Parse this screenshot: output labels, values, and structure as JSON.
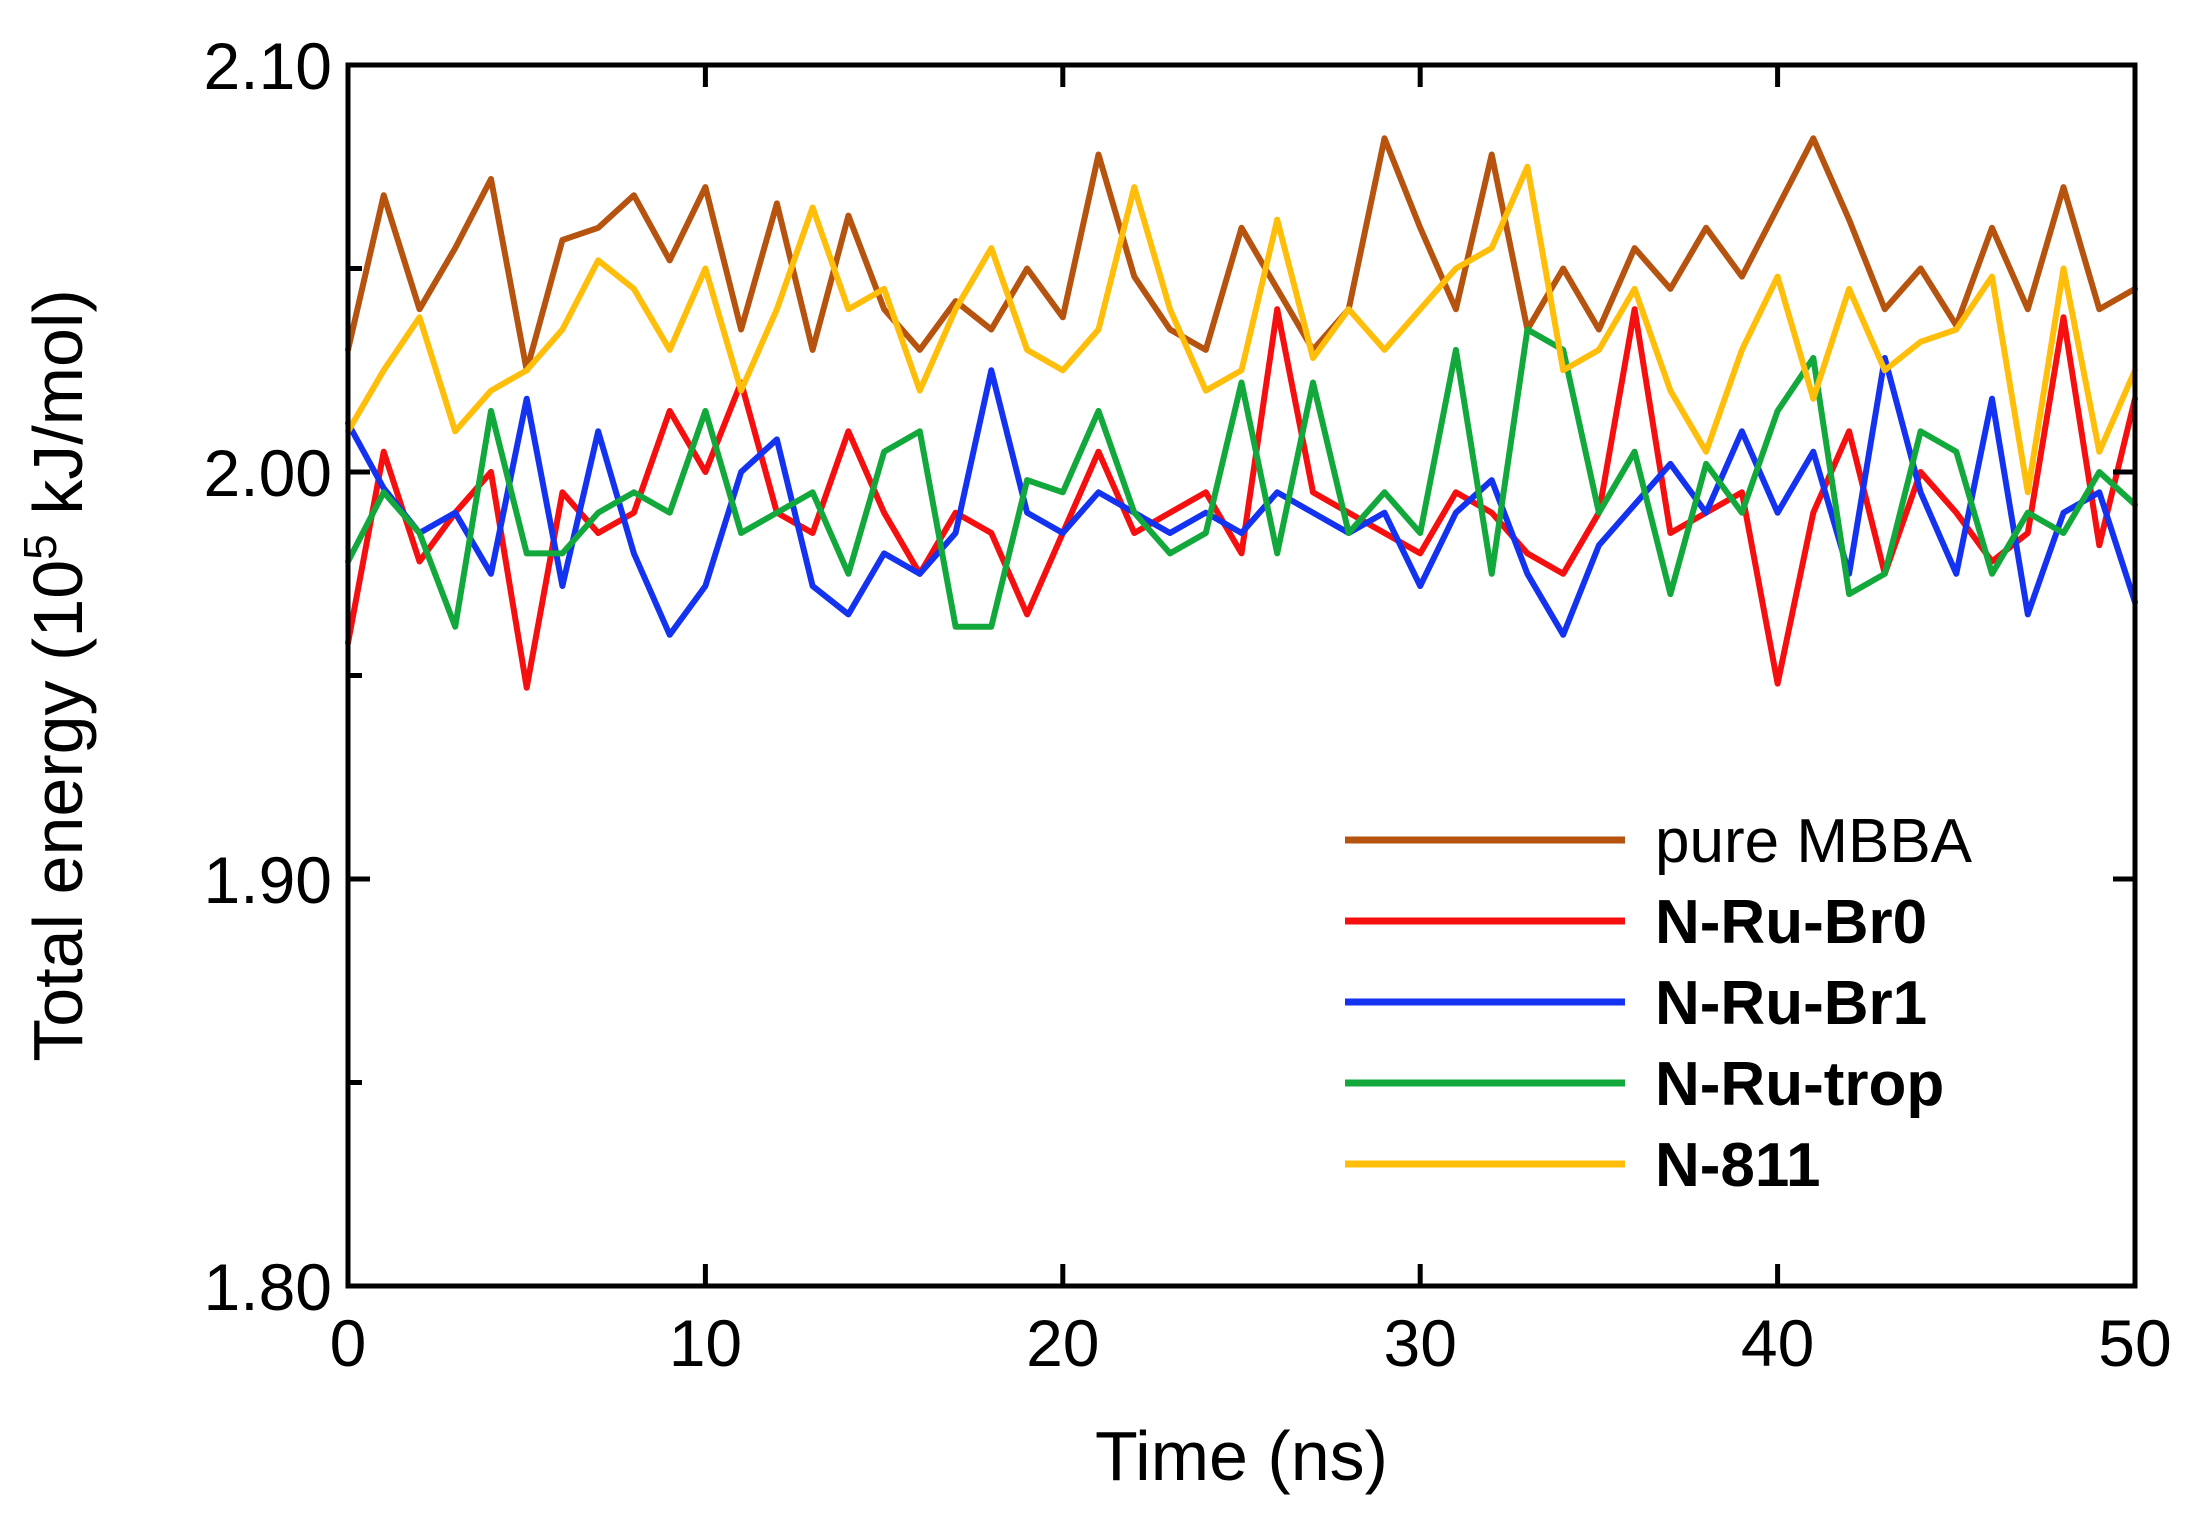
{
  "chart_data": {
    "type": "line",
    "title": "",
    "xlabel": "Time (ns)",
    "ylabel": "Total energy (10⁵ kJ/mol)",
    "xlim": [
      0,
      50
    ],
    "ylim": [
      1.8,
      2.1
    ],
    "xticks": [
      0,
      10,
      20,
      30,
      40,
      50
    ],
    "xtick_labels": [
      "0",
      "10",
      "20",
      "30",
      "40",
      "50"
    ],
    "yticks": [
      1.8,
      1.9,
      2.0,
      2.1
    ],
    "ytick_labels": [
      "1.80",
      "1.90",
      "2.00",
      "2.10"
    ],
    "yminor_ticks": [
      1.85,
      1.95,
      2.05
    ],
    "grid": false,
    "legend_position": "lower-right",
    "series": [
      {
        "name": "pure MBBA",
        "bold": false,
        "color": "#B5530F",
        "x": [
          0,
          1,
          2,
          3,
          4,
          5,
          6,
          7,
          8,
          9,
          10,
          11,
          12,
          13,
          14,
          15,
          16,
          17,
          18,
          19,
          20,
          21,
          22,
          23,
          24,
          25,
          26,
          27,
          28,
          29,
          30,
          31,
          32,
          33,
          34,
          35,
          36,
          37,
          38,
          39,
          40,
          41,
          42,
          43,
          44,
          45,
          46,
          47,
          48,
          49,
          50
        ],
        "y": [
          2.03,
          2.068,
          2.04,
          2.055,
          2.072,
          2.025,
          2.057,
          2.06,
          2.068,
          2.052,
          2.07,
          2.035,
          2.066,
          2.03,
          2.063,
          2.04,
          2.03,
          2.042,
          2.035,
          2.05,
          2.038,
          2.078,
          2.048,
          2.035,
          2.03,
          2.06,
          2.045,
          2.03,
          2.04,
          2.082,
          2.06,
          2.04,
          2.078,
          2.035,
          2.05,
          2.035,
          2.055,
          2.045,
          2.06,
          2.048,
          2.065,
          2.082,
          2.062,
          2.04,
          2.05,
          2.036,
          2.06,
          2.04,
          2.07,
          2.04,
          2.045
        ]
      },
      {
        "name": "N-Ru-Br0",
        "bold": true,
        "color": "#F50F0F",
        "x": [
          0,
          1,
          2,
          3,
          4,
          5,
          6,
          7,
          8,
          9,
          10,
          11,
          12,
          13,
          14,
          15,
          16,
          17,
          18,
          19,
          20,
          21,
          22,
          23,
          24,
          25,
          26,
          27,
          28,
          29,
          30,
          31,
          32,
          33,
          34,
          35,
          36,
          37,
          38,
          39,
          40,
          41,
          42,
          43,
          44,
          45,
          46,
          47,
          48,
          49,
          50
        ],
        "y": [
          1.958,
          2.005,
          1.978,
          1.99,
          2.0,
          1.947,
          1.995,
          1.985,
          1.99,
          2.015,
          2.0,
          2.022,
          1.99,
          1.985,
          2.01,
          1.99,
          1.975,
          1.99,
          1.985,
          1.965,
          1.985,
          2.005,
          1.985,
          1.99,
          1.995,
          1.98,
          2.04,
          1.995,
          1.99,
          1.985,
          1.98,
          1.995,
          1.99,
          1.98,
          1.975,
          1.99,
          2.04,
          1.985,
          1.99,
          1.995,
          1.948,
          1.99,
          2.01,
          1.975,
          2.0,
          1.99,
          1.978,
          1.985,
          2.038,
          1.982,
          2.018
        ]
      },
      {
        "name": "N-Ru-Br1",
        "bold": true,
        "color": "#1433F0",
        "x": [
          0,
          1,
          2,
          3,
          4,
          5,
          6,
          7,
          8,
          9,
          10,
          11,
          12,
          13,
          14,
          15,
          16,
          17,
          18,
          19,
          20,
          21,
          22,
          23,
          24,
          25,
          26,
          27,
          28,
          29,
          30,
          31,
          32,
          33,
          34,
          35,
          36,
          37,
          38,
          39,
          40,
          41,
          42,
          43,
          44,
          45,
          46,
          47,
          48,
          49,
          50
        ],
        "y": [
          2.012,
          1.996,
          1.985,
          1.99,
          1.975,
          2.018,
          1.972,
          2.01,
          1.98,
          1.96,
          1.972,
          2.0,
          2.008,
          1.972,
          1.965,
          1.98,
          1.975,
          1.985,
          2.025,
          1.99,
          1.985,
          1.995,
          1.99,
          1.985,
          1.99,
          1.985,
          1.995,
          1.99,
          1.985,
          1.99,
          1.972,
          1.99,
          1.998,
          1.975,
          1.96,
          1.982,
          1.992,
          2.002,
          1.99,
          2.01,
          1.99,
          2.005,
          1.975,
          2.028,
          1.995,
          1.975,
          2.018,
          1.965,
          1.99,
          1.995,
          1.968
        ]
      },
      {
        "name": "N-Ru-trop",
        "bold": true,
        "color": "#12A83C",
        "x": [
          0,
          1,
          2,
          3,
          4,
          5,
          6,
          7,
          8,
          9,
          10,
          11,
          12,
          13,
          14,
          15,
          16,
          17,
          18,
          19,
          20,
          21,
          22,
          23,
          24,
          25,
          26,
          27,
          28,
          29,
          30,
          31,
          32,
          33,
          34,
          35,
          36,
          37,
          38,
          39,
          40,
          41,
          42,
          43,
          44,
          45,
          46,
          47,
          48,
          49,
          50
        ],
        "y": [
          1.978,
          1.995,
          1.985,
          1.962,
          2.015,
          1.98,
          1.98,
          1.99,
          1.995,
          1.99,
          2.015,
          1.985,
          1.99,
          1.995,
          1.975,
          2.005,
          2.01,
          1.962,
          1.962,
          1.998,
          1.995,
          2.015,
          1.99,
          1.98,
          1.985,
          2.022,
          1.98,
          2.022,
          1.985,
          1.995,
          1.985,
          2.03,
          1.975,
          2.035,
          2.03,
          1.99,
          2.005,
          1.97,
          2.002,
          1.99,
          2.015,
          2.028,
          1.97,
          1.975,
          2.01,
          2.005,
          1.975,
          1.99,
          1.985,
          2.0,
          1.992
        ]
      },
      {
        "name": "N-811",
        "bold": true,
        "color": "#FFBE0A",
        "x": [
          0,
          1,
          2,
          3,
          4,
          5,
          6,
          7,
          8,
          9,
          10,
          11,
          12,
          13,
          14,
          15,
          16,
          17,
          18,
          19,
          20,
          21,
          22,
          23,
          24,
          25,
          26,
          27,
          28,
          29,
          30,
          31,
          32,
          33,
          34,
          35,
          36,
          37,
          38,
          39,
          40,
          41,
          42,
          43,
          44,
          45,
          46,
          47,
          48,
          49,
          50
        ],
        "y": [
          2.01,
          2.025,
          2.038,
          2.01,
          2.02,
          2.025,
          2.035,
          2.052,
          2.045,
          2.03,
          2.05,
          2.02,
          2.04,
          2.065,
          2.04,
          2.045,
          2.02,
          2.04,
          2.055,
          2.03,
          2.025,
          2.035,
          2.07,
          2.04,
          2.02,
          2.025,
          2.062,
          2.028,
          2.04,
          2.03,
          2.04,
          2.05,
          2.055,
          2.075,
          2.025,
          2.03,
          2.045,
          2.02,
          2.005,
          2.03,
          2.048,
          2.018,
          2.045,
          2.025,
          2.032,
          2.035,
          2.048,
          1.995,
          2.05,
          2.005,
          2.025
        ]
      }
    ]
  }
}
